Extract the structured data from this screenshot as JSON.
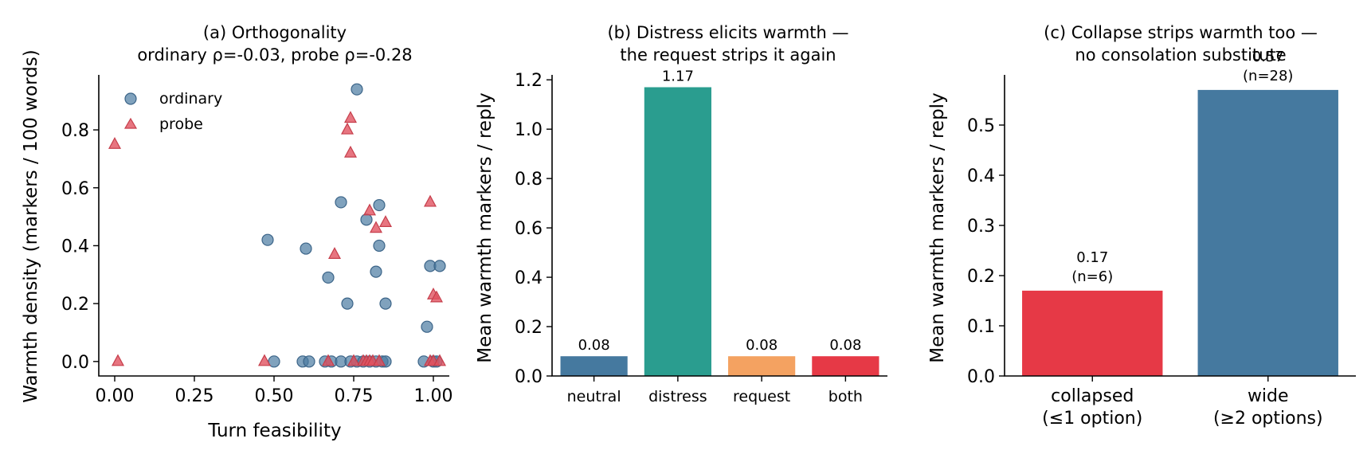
{
  "chart_data": [
    {
      "type": "scatter",
      "title_line1": "(a) Orthogonality",
      "title_line2": "ordinary ρ=-0.03, probe ρ=-0.28",
      "xlabel": "Turn feasibility",
      "ylabel": "Warmth density (markers / 100 words)",
      "xlim": [
        -0.05,
        1.05
      ],
      "ylim": [
        -0.05,
        0.99
      ],
      "xticks": [
        "0.00",
        "0.25",
        "0.50",
        "0.75",
        "1.00"
      ],
      "yticks": [
        "0.0",
        "0.2",
        "0.4",
        "0.6",
        "0.8"
      ],
      "legend_position": "upper-left",
      "series": [
        {
          "name": "ordinary",
          "marker": "circle",
          "color": "#4a7ba1",
          "points": [
            [
              0.48,
              0.42
            ],
            [
              0.5,
              0.0
            ],
            [
              0.6,
              0.39
            ],
            [
              0.59,
              0.0
            ],
            [
              0.61,
              0.0
            ],
            [
              0.67,
              0.29
            ],
            [
              0.66,
              0.0
            ],
            [
              0.68,
              0.0
            ],
            [
              0.71,
              0.55
            ],
            [
              0.71,
              0.0
            ],
            [
              0.73,
              0.2
            ],
            [
              0.74,
              0.0
            ],
            [
              0.76,
              0.94
            ],
            [
              0.76,
              0.0
            ],
            [
              0.78,
              0.0
            ],
            [
              0.79,
              0.49
            ],
            [
              0.8,
              0.0
            ],
            [
              0.82,
              0.31
            ],
            [
              0.82,
              0.0
            ],
            [
              0.83,
              0.54
            ],
            [
              0.83,
              0.4
            ],
            [
              0.84,
              0.0
            ],
            [
              0.85,
              0.2
            ],
            [
              0.85,
              0.0
            ],
            [
              0.98,
              0.12
            ],
            [
              0.97,
              0.0
            ],
            [
              0.99,
              0.33
            ],
            [
              1.0,
              0.0
            ],
            [
              1.02,
              0.33
            ],
            [
              1.01,
              0.0
            ]
          ]
        },
        {
          "name": "probe",
          "marker": "triangle",
          "color": "#e15360",
          "points": [
            [
              0.0,
              0.75
            ],
            [
              0.01,
              0.0
            ],
            [
              0.47,
              0.0
            ],
            [
              0.67,
              0.0
            ],
            [
              0.69,
              0.37
            ],
            [
              0.73,
              0.8
            ],
            [
              0.74,
              0.84
            ],
            [
              0.74,
              0.72
            ],
            [
              0.75,
              0.0
            ],
            [
              0.78,
              0.0
            ],
            [
              0.79,
              0.0
            ],
            [
              0.8,
              0.52
            ],
            [
              0.8,
              0.0
            ],
            [
              0.81,
              0.0
            ],
            [
              0.82,
              0.46
            ],
            [
              0.83,
              0.0
            ],
            [
              0.85,
              0.48
            ],
            [
              0.99,
              0.55
            ],
            [
              0.99,
              0.0
            ],
            [
              1.0,
              0.23
            ],
            [
              1.01,
              0.22
            ],
            [
              1.0,
              0.0
            ],
            [
              1.02,
              0.0
            ]
          ]
        }
      ]
    },
    {
      "type": "bar",
      "title_line1": "(b) Distress elicits warmth —",
      "title_line2": "the request strips it again",
      "xlabel": "",
      "ylabel": "Mean warmth markers / reply",
      "ylim": [
        0,
        1.22
      ],
      "yticks": [
        "0.0",
        "0.2",
        "0.4",
        "0.6",
        "0.8",
        "1.0",
        "1.2"
      ],
      "categories": [
        "neutral",
        "distress",
        "request",
        "both"
      ],
      "values": [
        0.08,
        1.17,
        0.08,
        0.08
      ],
      "labels": [
        "0.08",
        "1.17",
        "0.08",
        "0.08"
      ],
      "colors": [
        "#45799f",
        "#2a9d8f",
        "#f4a261",
        "#e63946"
      ]
    },
    {
      "type": "bar",
      "title_line1": "(c) Collapse strips warmth too —",
      "title_line2": "no consolation substitute",
      "xlabel": "",
      "ylabel": "Mean warmth markers / reply",
      "ylim": [
        0,
        0.6
      ],
      "yticks": [
        "0.0",
        "0.1",
        "0.2",
        "0.3",
        "0.4",
        "0.5"
      ],
      "categories": [
        {
          "line1": "collapsed",
          "line2": "(≤1 option)"
        },
        {
          "line1": "wide",
          "line2": "(≥2 options)"
        }
      ],
      "values": [
        0.17,
        0.57
      ],
      "labels": [
        {
          "value": "0.17",
          "n": "(n=6)"
        },
        {
          "value": "0.57",
          "n": "(n=28)"
        }
      ],
      "colors": [
        "#e63946",
        "#45799f"
      ]
    }
  ]
}
